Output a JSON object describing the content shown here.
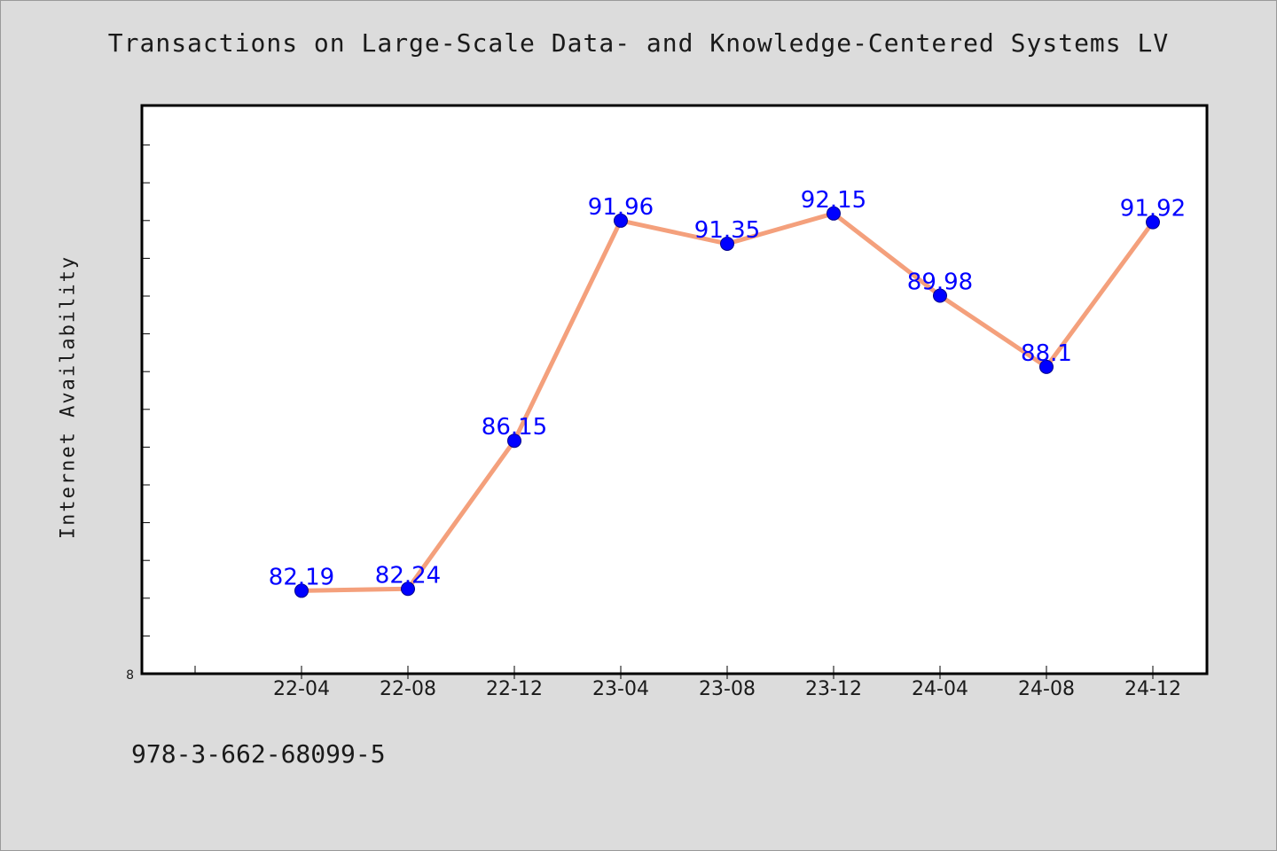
{
  "chart_data": {
    "type": "line",
    "title": "Transactions on Large-Scale Data- and Knowledge-Centered Systems LV",
    "xlabel": "",
    "ylabel": "Internet Availability",
    "categories": [
      "22-04",
      "22-08",
      "22-12",
      "23-04",
      "23-08",
      "23-12",
      "24-04",
      "24-08",
      "24-12"
    ],
    "series": [
      {
        "values": [
          82.19,
          82.24,
          86.15,
          91.96,
          91.35,
          92.15,
          89.98,
          88.1,
          91.92
        ],
        "labels": [
          "82.19",
          "82.24",
          "86.15",
          "91.96",
          "91.35",
          "92.15",
          "89.98",
          "88.1",
          "91.92"
        ]
      }
    ],
    "y_tick_labels": [
      "8"
    ],
    "ylim": [
      80,
      95
    ],
    "grid": false,
    "legend": "none",
    "line_color": "#f4a07c",
    "marker_color": "#0000ff",
    "label_color": "#0000ff",
    "plot_background": "#ffffff",
    "figure_background": "#dcdcdc"
  },
  "footer": {
    "text": "978-3-662-68099-5"
  }
}
